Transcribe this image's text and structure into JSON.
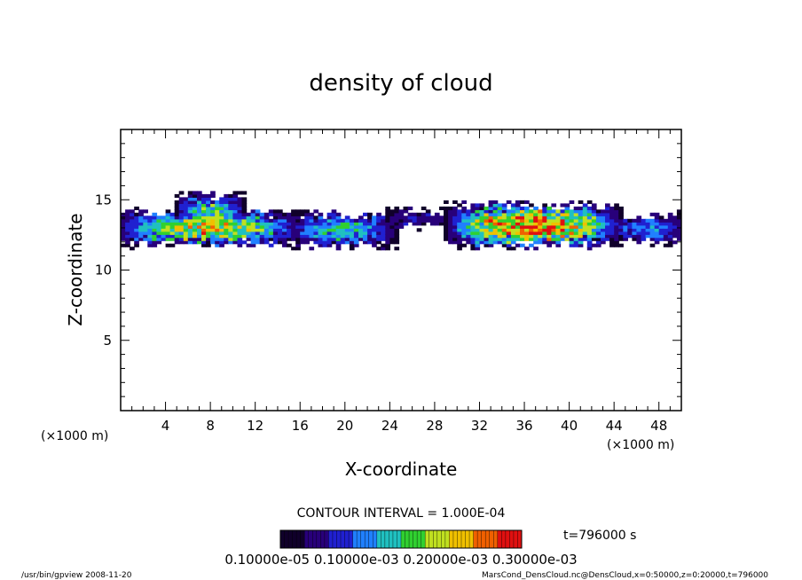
{
  "chart_data": {
    "type": "heatmap",
    "title": "density of cloud",
    "xlabel": "X-coordinate",
    "ylabel": "Z-coordinate",
    "x_unit": "(×1000 m)",
    "xlim": [
      0,
      50
    ],
    "ylim": [
      0,
      20
    ],
    "x_ticks": [
      4,
      8,
      12,
      16,
      20,
      24,
      28,
      32,
      36,
      40,
      44,
      48
    ],
    "y_ticks": [
      5,
      10,
      15
    ],
    "contour_interval": "CONTOUR INTERVAL = 1.000E-04",
    "time_label": "t=796000 s",
    "colorbar_labels": "0.10000e-05 0.10000e-03 0.20000e-03 0.30000e-03",
    "colorbar_range": [
      0,
      0.0007
    ],
    "cloud_blobs": [
      {
        "x0": 0,
        "x1": 15.5,
        "z_bottom": 11.9,
        "z_top": 14.1,
        "peak": 0.00045
      },
      {
        "x0": 5.5,
        "x1": 10.5,
        "z_bottom": 12.5,
        "z_top": 15.3,
        "peak": 0.00035
      },
      {
        "x0": 15.5,
        "x1": 24,
        "z_bottom": 11.8,
        "z_top": 14.0,
        "peak": 0.0003
      },
      {
        "x0": 24,
        "x1": 29,
        "z_bottom": 13.2,
        "z_top": 14.2,
        "peak": 0.0001
      },
      {
        "x0": 29.5,
        "x1": 44,
        "z_bottom": 11.8,
        "z_top": 14.6,
        "peak": 0.0006
      },
      {
        "x0": 44,
        "x1": 50,
        "z_bottom": 12.0,
        "z_top": 13.9,
        "peak": 0.0002
      }
    ]
  },
  "footer": {
    "left": "/usr/bin/gpview   2008-11-20",
    "right": "MarsCond_DensCloud.nc@DensCloud,x=0:50000,z=0:20000,t=796000"
  },
  "colors": {
    "scale": [
      "#10002a",
      "#28007a",
      "#2020d0",
      "#2080ff",
      "#20c0c0",
      "#30d030",
      "#c0e020",
      "#f0c000",
      "#f06000",
      "#e01010"
    ]
  }
}
